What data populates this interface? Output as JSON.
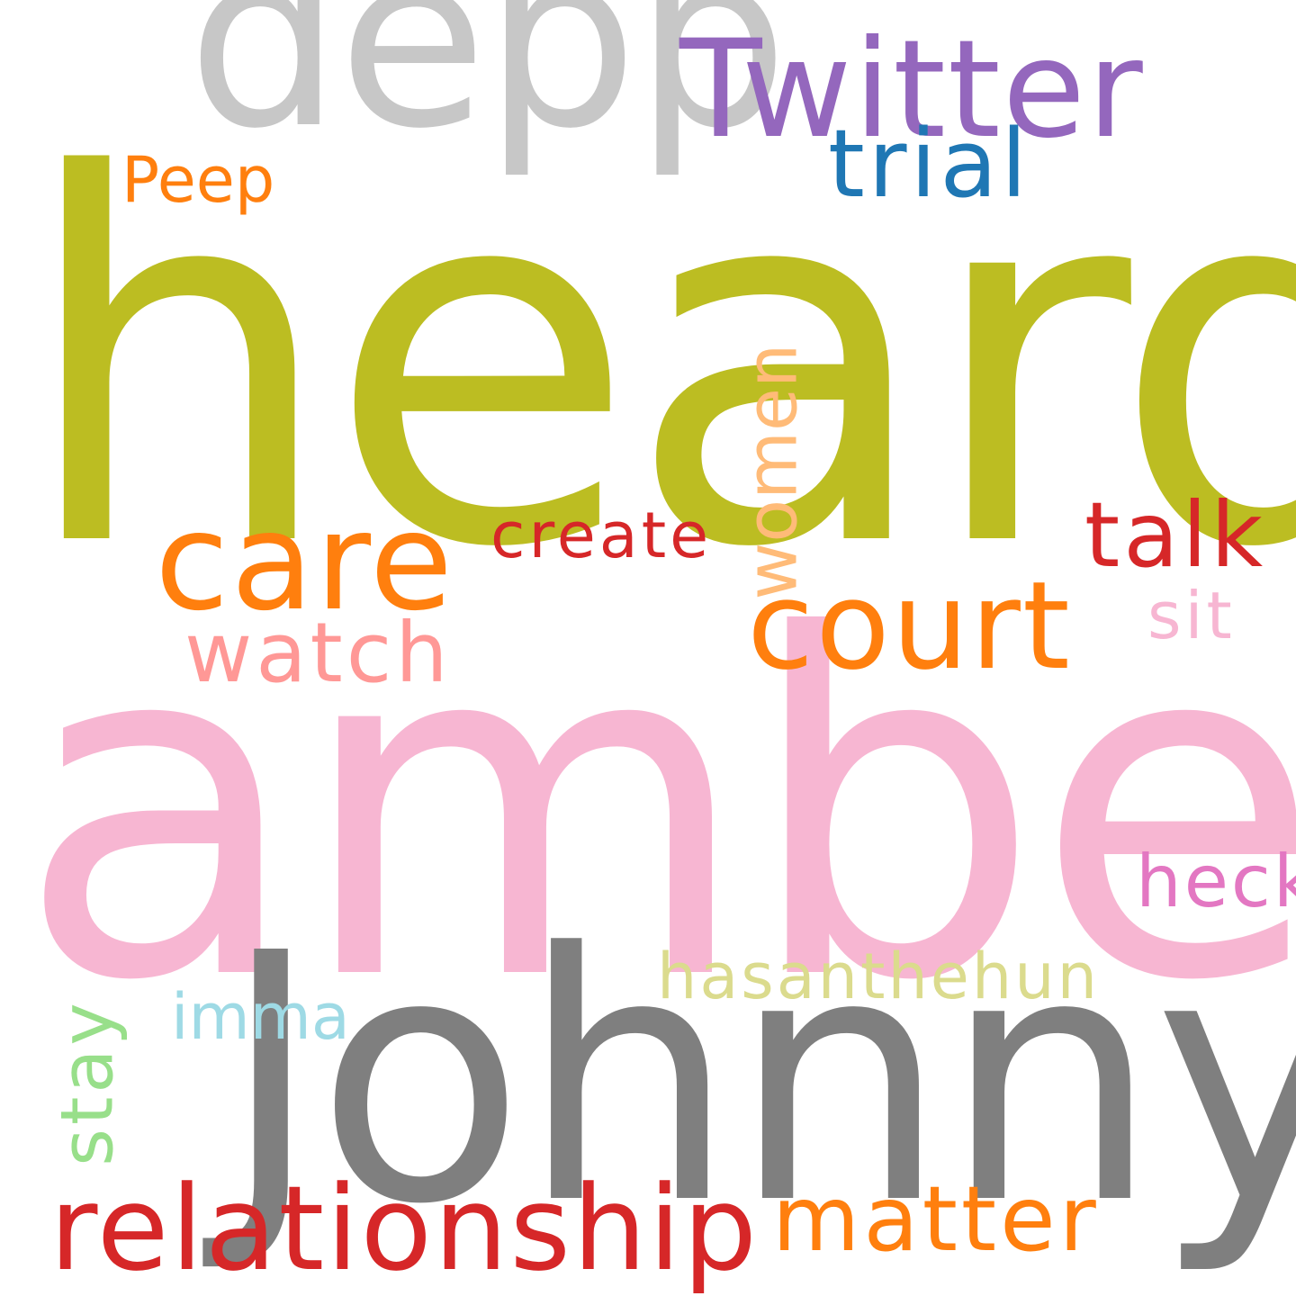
{
  "word_cloud": {
    "words": [
      {
        "key": "heard",
        "text": "heard",
        "color": "#bcbd22"
      },
      {
        "key": "amber",
        "text": "amber",
        "color": "#f7b6d2"
      },
      {
        "key": "johnny",
        "text": "Johnny",
        "color": "#7f7f7f"
      },
      {
        "key": "depp",
        "text": "depp",
        "color": "#c7c7c7"
      },
      {
        "key": "twitter",
        "text": "Twitter",
        "color": "#9467bd"
      },
      {
        "key": "trial",
        "text": "trial",
        "color": "#1f77b4"
      },
      {
        "key": "peep",
        "text": "Peep",
        "color": "#ff7f0e"
      },
      {
        "key": "care",
        "text": "care",
        "color": "#ff7f0e"
      },
      {
        "key": "create",
        "text": "create",
        "color": "#d62728"
      },
      {
        "key": "talk",
        "text": "talk",
        "color": "#d62728"
      },
      {
        "key": "court",
        "text": "court",
        "color": "#ff7f0e"
      },
      {
        "key": "women",
        "text": "women",
        "color": "#ffbb78"
      },
      {
        "key": "watch",
        "text": "watch",
        "color": "#ff9896"
      },
      {
        "key": "sit",
        "text": "sit",
        "color": "#f7b6d2"
      },
      {
        "key": "heck",
        "text": "heck",
        "color": "#e377c2"
      },
      {
        "key": "hasanthehun",
        "text": "hasanthehun",
        "color": "#dbdb8d"
      },
      {
        "key": "imma",
        "text": "imma",
        "color": "#9edae5"
      },
      {
        "key": "stay",
        "text": "stay",
        "color": "#98df8a"
      },
      {
        "key": "relationship",
        "text": "relationship",
        "color": "#d62728"
      },
      {
        "key": "matter",
        "text": "matter",
        "color": "#ff7f0e"
      }
    ]
  }
}
